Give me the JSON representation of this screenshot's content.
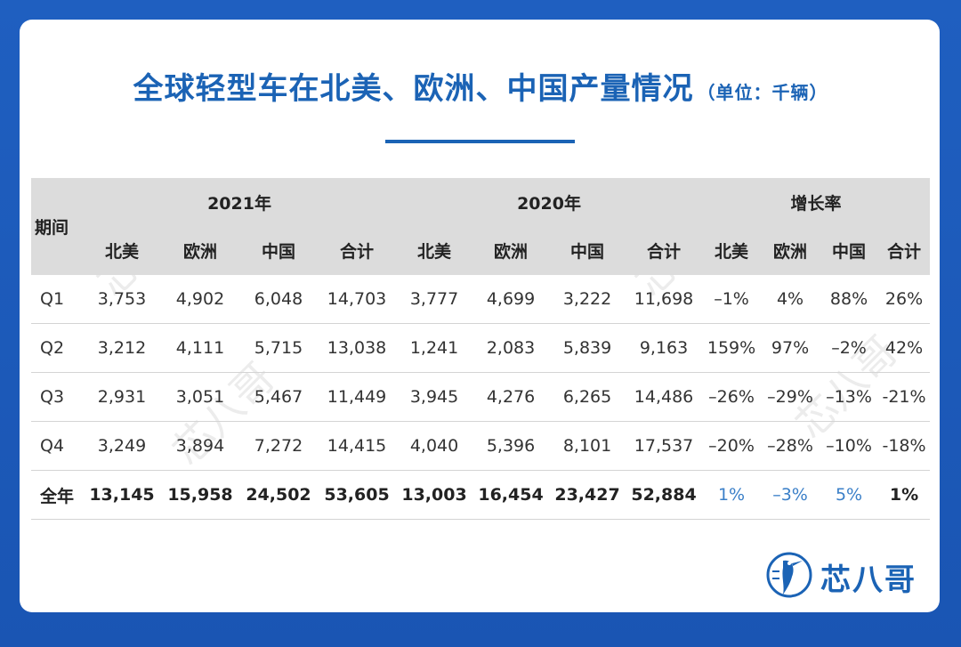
{
  "title": "全球轻型车在北美、欧洲、中国产量情况",
  "unit": "（单位：千辆）",
  "header": {
    "period": "期间",
    "groups": [
      "2021年",
      "2020年",
      "增长率"
    ],
    "subcols": [
      "北美",
      "欧洲",
      "中国",
      "合计",
      "北美",
      "欧洲",
      "中国",
      "合计",
      "北美",
      "欧洲",
      "中国",
      "合计"
    ]
  },
  "rows": [
    {
      "period": "Q1",
      "cells": [
        "3,753",
        "4,902",
        "6,048",
        "14,703",
        "3,777",
        "4,699",
        "3,222",
        "11,698",
        "–1%",
        "4%",
        "88%",
        "26%"
      ]
    },
    {
      "period": "Q2",
      "cells": [
        "3,212",
        "4,111",
        "5,715",
        "13,038",
        "1,241",
        "2,083",
        "5,839",
        "9,163",
        "159%",
        "97%",
        "–2%",
        "42%"
      ]
    },
    {
      "period": "Q3",
      "cells": [
        "2,931",
        "3,051",
        "5,467",
        "11,449",
        "3,945",
        "4,276",
        "6,265",
        "14,486",
        "–26%",
        "–29%",
        "–13%",
        "-21%"
      ]
    },
    {
      "period": "Q4",
      "cells": [
        "3,249",
        "3,894",
        "7,272",
        "14,415",
        "4,040",
        "5,396",
        "8,101",
        "17,537",
        "–20%",
        "–28%",
        "–10%",
        "-18%"
      ]
    }
  ],
  "total": {
    "period": "全年",
    "cells": [
      "13,145",
      "15,958",
      "24,502",
      "53,605",
      "13,003",
      "16,454",
      "23,427",
      "52,884",
      "1%",
      "–3%",
      "5%",
      "1%"
    ]
  },
  "logo": {
    "text": "芯八哥",
    "icon": "bird-logo-icon"
  },
  "colors": {
    "brand": "#1b63b5",
    "background": "#1a55b3",
    "header_bg": "#dcdcdc",
    "growth_blue": "#3a7fc8"
  }
}
